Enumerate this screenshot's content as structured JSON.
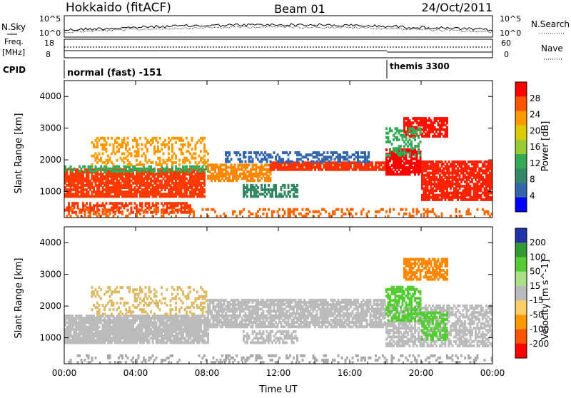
{
  "header": {
    "station": "Hokkaido (fitACF)",
    "beam": "Beam 01",
    "date": "24/Oct/2011"
  },
  "aux_labels": {
    "nsky": "N.Sky",
    "nsearch": "N.Search",
    "freq": "Freq.",
    "freq_unit": "[MHz]",
    "nave": "Nave",
    "cpid": "CPID",
    "cpid_left": "normal (fast) -151",
    "cpid_right": "themis 3300",
    "noise_ticks": [
      "10^5",
      "10^0"
    ],
    "freq_ticks": [
      "18",
      "8"
    ],
    "nave_ticks": [
      "60",
      "0"
    ]
  },
  "chart_data": [
    {
      "type": "heatmap",
      "name_key": "power",
      "xlabel": "",
      "ylabel": "Slant Range [km]",
      "x_ticks": [
        "00:00",
        "04:00",
        "08:00",
        "12:00",
        "16:00",
        "20:00",
        "00:00"
      ],
      "y_ticks": [
        "1000",
        "2000",
        "3000",
        "4000"
      ],
      "xlim_hours": [
        0,
        24
      ],
      "ylim_km": [
        180,
        4500
      ],
      "colorbar_label": "Power [dB]",
      "colorbar_ticks": [
        "28",
        "24",
        "20",
        "16",
        "12",
        "8",
        "4"
      ],
      "colorbar_colors": [
        "#ff0000",
        "#ff5500",
        "#ff9900",
        "#ddcc00",
        "#99cc33",
        "#33aa55",
        "#338866",
        "#3366aa",
        "#0000ff"
      ],
      "bands": [
        {
          "t0": 0,
          "t1": 7.8,
          "r0": 800,
          "r1": 1700,
          "color": "#ff3a00",
          "density": 0.85
        },
        {
          "t0": 0,
          "t1": 8,
          "r0": 1600,
          "r1": 1800,
          "color": "#33aa55",
          "density": 0.5
        },
        {
          "t0": 1.5,
          "t1": 8,
          "r0": 1800,
          "r1": 2700,
          "color": "#ff9900",
          "density": 0.35
        },
        {
          "t0": 0,
          "t1": 7,
          "r0": 300,
          "r1": 600,
          "color": "#ff3a00",
          "density": 0.6
        },
        {
          "t0": 8,
          "t1": 11.5,
          "r0": 1300,
          "r1": 1800,
          "color": "#ff8800",
          "density": 0.75
        },
        {
          "t0": 11.5,
          "t1": 18,
          "r0": 1650,
          "r1": 1900,
          "color": "#ff3300",
          "density": 0.9
        },
        {
          "t0": 9,
          "t1": 17,
          "r0": 1900,
          "r1": 2200,
          "color": "#3366aa",
          "density": 0.45
        },
        {
          "t0": 10,
          "t1": 13,
          "r0": 800,
          "r1": 1200,
          "color": "#338866",
          "density": 0.6
        },
        {
          "t0": 18,
          "t1": 20,
          "r0": 1500,
          "r1": 2300,
          "color": "#ff0000",
          "density": 0.85
        },
        {
          "t0": 20,
          "t1": 24,
          "r0": 700,
          "r1": 1900,
          "color": "#ff2200",
          "density": 0.8
        },
        {
          "t0": 19,
          "t1": 21.5,
          "r0": 2700,
          "r1": 3300,
          "color": "#ff1100",
          "density": 0.75
        },
        {
          "t0": 18,
          "t1": 20,
          "r0": 2100,
          "r1": 3000,
          "color": "#33aa55",
          "density": 0.35
        },
        {
          "t0": 0,
          "t1": 24,
          "r0": 180,
          "r1": 450,
          "color": "#ff6600",
          "density": 0.25
        }
      ]
    },
    {
      "type": "heatmap",
      "name_key": "velocity",
      "xlabel": "Time UT",
      "ylabel": "Slant Range [km]",
      "x_ticks": [
        "00:00",
        "04:00",
        "08:00",
        "12:00",
        "16:00",
        "20:00",
        "00:00"
      ],
      "y_ticks": [
        "1000",
        "2000",
        "3000",
        "4000"
      ],
      "xlim_hours": [
        0,
        24
      ],
      "ylim_km": [
        180,
        4500
      ],
      "colorbar_label": "Velocity [m s^-1]",
      "colorbar_ticks": [
        "200",
        "100",
        "50",
        "15",
        "-15",
        "-50",
        "-100",
        "-200"
      ],
      "colorbar_colors": [
        "#2233aa",
        "#339933",
        "#55cc33",
        "#aae088",
        "#bbbbbb",
        "#ffcc66",
        "#ff9900",
        "#ff5500",
        "#ff0000"
      ],
      "bands": [
        {
          "t0": 0,
          "t1": 8,
          "r0": 800,
          "r1": 1700,
          "color": "#bbbbbb",
          "density": 0.9
        },
        {
          "t0": 1.5,
          "t1": 8,
          "r0": 1700,
          "r1": 2600,
          "color": "#ddbb66",
          "density": 0.3
        },
        {
          "t0": 8,
          "t1": 18,
          "r0": 1300,
          "r1": 2200,
          "color": "#bbbbbb",
          "density": 0.8
        },
        {
          "t0": 10,
          "t1": 13,
          "r0": 800,
          "r1": 1200,
          "color": "#bbbbbb",
          "density": 0.6
        },
        {
          "t0": 18,
          "t1": 24,
          "r0": 700,
          "r1": 2000,
          "color": "#bbbbbb",
          "density": 0.6
        },
        {
          "t0": 18,
          "t1": 20,
          "r0": 1500,
          "r1": 2600,
          "color": "#55cc33",
          "density": 0.6
        },
        {
          "t0": 20,
          "t1": 21.5,
          "r0": 900,
          "r1": 1800,
          "color": "#55cc33",
          "density": 0.55
        },
        {
          "t0": 19,
          "t1": 21.5,
          "r0": 2800,
          "r1": 3500,
          "color": "#ff8800",
          "density": 0.7
        },
        {
          "t0": 0,
          "t1": 24,
          "r0": 180,
          "r1": 450,
          "color": "#aaaaaa",
          "density": 0.25
        }
      ]
    }
  ]
}
